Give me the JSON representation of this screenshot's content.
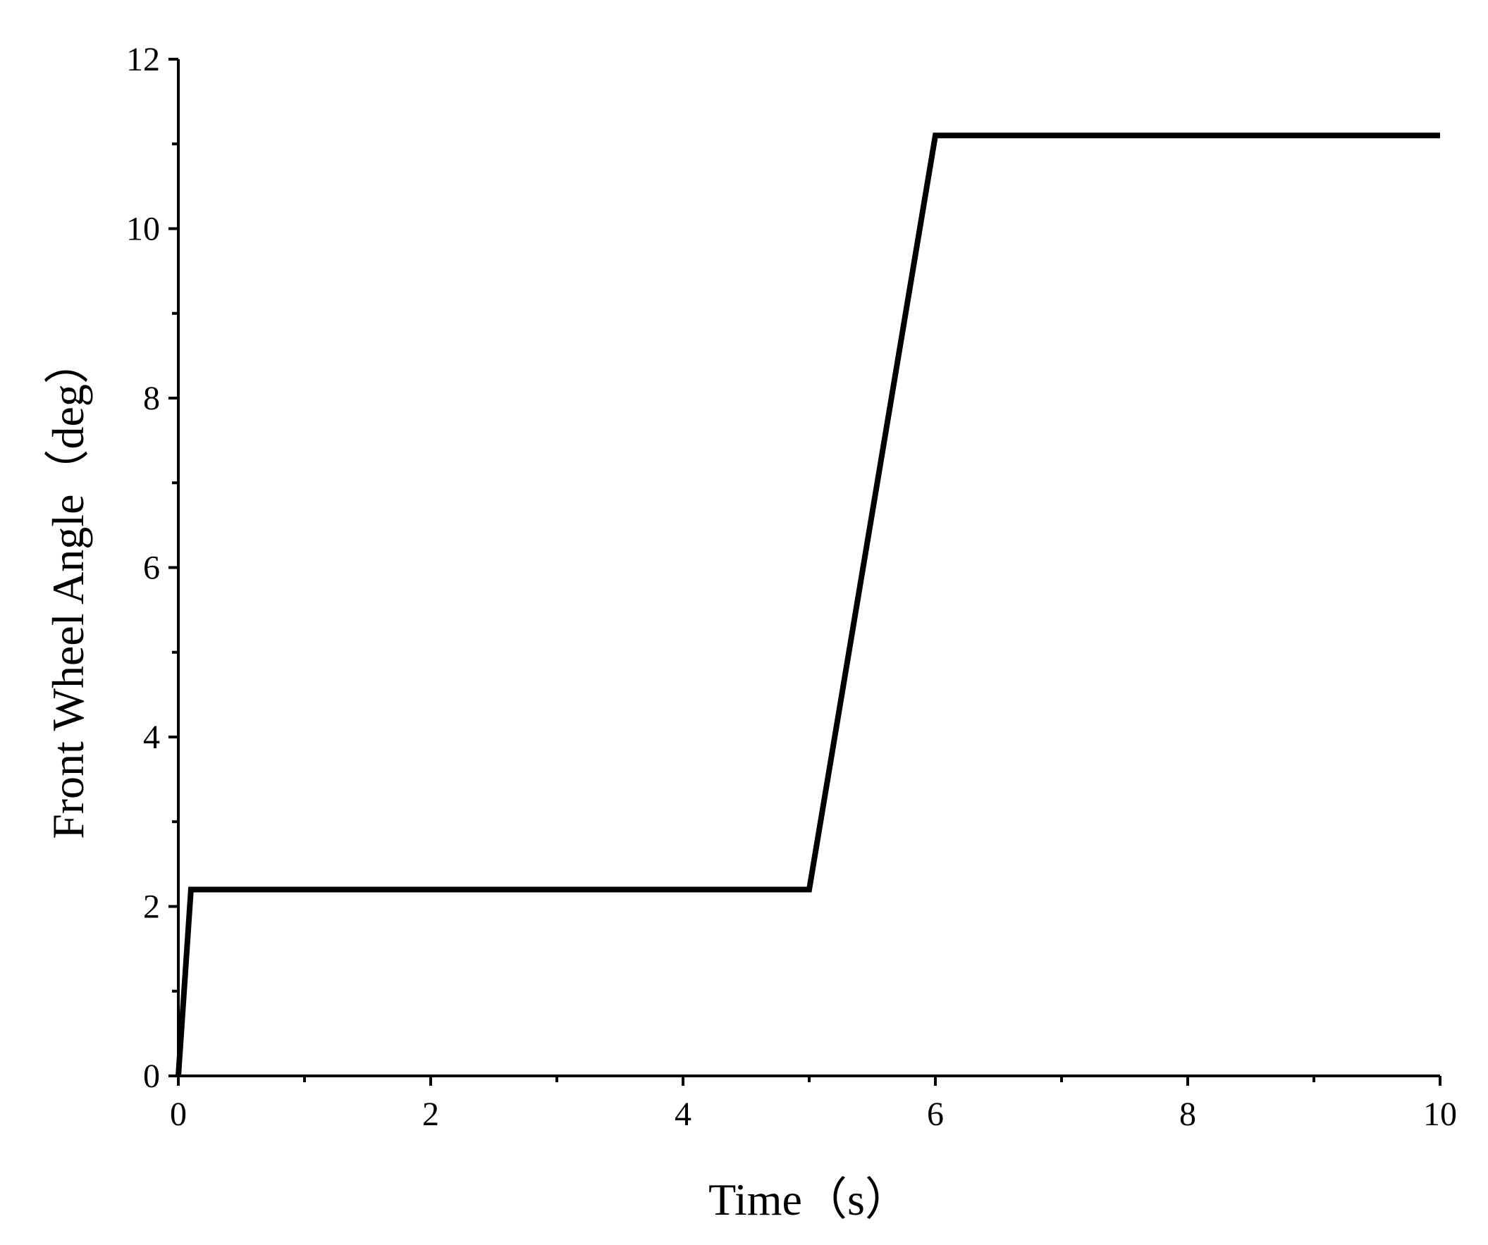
{
  "chart_data": {
    "type": "line",
    "x_label": "Time（s）",
    "y_label": "Front Wheel Angle（deg）",
    "x": [
      0,
      0.1,
      5,
      6,
      10
    ],
    "series": [
      {
        "name": "Front Wheel Angle",
        "color": "#000000",
        "values": [
          0,
          2.2,
          2.2,
          11.1,
          11.1
        ]
      }
    ],
    "xlim": [
      0,
      10
    ],
    "xticks": [
      0,
      2,
      4,
      6,
      8,
      10
    ],
    "ylim": [
      0,
      12
    ],
    "yticks": [
      0,
      2,
      4,
      6,
      8,
      10,
      12
    ],
    "grid": false,
    "legend": false
  }
}
